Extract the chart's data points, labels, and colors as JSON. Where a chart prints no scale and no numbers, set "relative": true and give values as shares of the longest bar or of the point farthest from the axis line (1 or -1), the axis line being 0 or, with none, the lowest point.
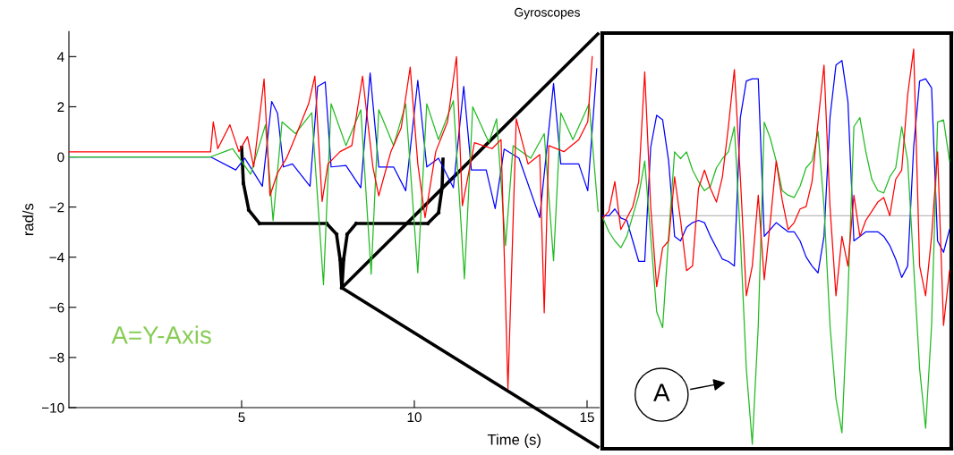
{
  "chart_data": [
    {
      "type": "line",
      "title": "Gyroscopes",
      "xlabel": "Time (s)",
      "ylabel": "rad/s",
      "xlim": [
        0,
        15.35
      ],
      "ylim": [
        -10,
        5
      ],
      "xticks": [
        5,
        10,
        15
      ],
      "yticks": [
        {
          "value": -10,
          "label": "−10"
        },
        {
          "value": -8,
          "label": "−8"
        },
        {
          "value": -6,
          "label": "−6"
        },
        {
          "value": -4,
          "label": "−4"
        },
        {
          "value": -2,
          "label": "−2"
        },
        0,
        2,
        4
      ],
      "grid": false,
      "legend": false,
      "marker": "none",
      "line_style": "solid",
      "annotations": [
        "A=Y-Axis"
      ],
      "series": [
        {
          "color": "#0000ff",
          "x": [
            0,
            4.1,
            4.83,
            5.09,
            5.6,
            5.87,
            6.04,
            6.21,
            6.47,
            6.98,
            7.2,
            7.42,
            7.59,
            8.02,
            8.45,
            8.72,
            8.97,
            9.4,
            9.75,
            10.1,
            10.36,
            10.7,
            11.13,
            11.43,
            11.65,
            12.08,
            12.34,
            12.6,
            13.03,
            13.63,
            14.03,
            14.24,
            14.76,
            15.02,
            15.28
          ],
          "values": [
            0,
            0,
            -0.52,
            -0.05,
            -1.17,
            2.21,
            1.74,
            -0.4,
            -0.28,
            -1.17,
            2.81,
            2.99,
            -0.4,
            -0.34,
            -1.23,
            3.35,
            -0.4,
            -0.4,
            -1.35,
            3.05,
            -0.4,
            -0.05,
            -1.23,
            2.81,
            -0.52,
            -0.52,
            -2.06,
            0.31,
            -0.05,
            -2.42,
            2.93,
            -0.28,
            -0.28,
            -1.35,
            3.52
          ]
        },
        {
          "color": "#22bb22",
          "x": [
            0,
            4.1,
            4.74,
            5.26,
            5.69,
            5.91,
            6.17,
            6.56,
            7.03,
            7.37,
            7.59,
            8.02,
            8.45,
            8.75,
            8.97,
            9.4,
            9.75,
            10.1,
            10.36,
            10.7,
            11.13,
            11.45,
            11.69,
            12.16,
            12.38,
            12.64,
            12.86,
            13.37,
            13.76,
            14.03,
            14.24,
            14.59,
            15.06,
            15.32
          ],
          "values": [
            0,
            0,
            0.33,
            -0.69,
            1.28,
            -2.54,
            1.4,
            0.93,
            1.76,
            -5.1,
            2.12,
            0.45,
            1.88,
            -4.68,
            1.88,
            0.45,
            2.12,
            -4.62,
            2.12,
            0.69,
            2.24,
            -4.86,
            2.0,
            0.57,
            1.52,
            -3.54,
            0.45,
            -0.05,
            0.93,
            -4.14,
            1.76,
            0.69,
            2.12,
            -2.18
          ]
        },
        {
          "color": "#ff0000",
          "x": [
            0,
            4.1,
            4.18,
            4.31,
            4.66,
            4.92,
            5.17,
            5.35,
            5.65,
            5.82,
            6.04,
            6.3,
            6.56,
            6.94,
            7.12,
            7.33,
            7.5,
            7.85,
            8.19,
            8.5,
            8.8,
            8.97,
            9.32,
            9.62,
            9.88,
            10.1,
            10.31,
            10.62,
            10.96,
            11.22,
            11.39,
            11.74,
            12.25,
            12.51,
            12.71,
            12.95,
            13.29,
            13.63,
            13.76,
            13.89,
            14.33,
            14.76,
            15.02,
            15.15
          ],
          "values": [
            0.2,
            0.2,
            1.4,
            0.33,
            1.28,
            0.21,
            0.81,
            -0.4,
            3.11,
            -1.55,
            -0.64,
            -0.05,
            0.81,
            2.12,
            3.22,
            -1.78,
            -0.28,
            0.21,
            0.45,
            3.22,
            -0.4,
            -1.55,
            0.21,
            1.16,
            3.58,
            -0.28,
            -2.42,
            0.21,
            1.4,
            4.0,
            -1.95,
            0.57,
            0.33,
            0.69,
            -9.25,
            1.52,
            -0.28,
            0.09,
            -6.22,
            0.45,
            0.21,
            0.69,
            1.4,
            4.0
          ]
        }
      ]
    },
    {
      "type": "line",
      "relative": true,
      "grid": false,
      "legend": false,
      "marker": "none",
      "line_style": "solid",
      "categories": [
        null,
        null,
        null,
        null,
        null,
        null,
        null,
        null,
        null,
        null,
        null,
        null,
        null,
        null,
        null,
        null,
        null,
        null,
        null,
        null,
        null,
        null,
        null,
        null,
        null,
        null,
        null,
        null,
        null,
        null,
        null,
        null,
        null,
        null,
        null,
        null,
        null,
        null,
        null,
        null,
        null,
        null,
        null,
        null,
        null,
        null,
        null,
        null,
        null,
        null,
        null,
        null,
        null,
        null,
        null,
        null,
        null,
        null,
        null
      ],
      "annotations": [
        "A"
      ],
      "series": [
        {
          "color": "#0000ff",
          "values": [
            0.0,
            0.0,
            0.03,
            -0.01,
            -0.02,
            -0.11,
            -0.2,
            -0.2,
            0.3,
            0.44,
            0.42,
            0.24,
            -0.09,
            -0.11,
            -0.05,
            -0.03,
            -0.02,
            -0.03,
            -0.09,
            -0.14,
            -0.19,
            -0.2,
            -0.22,
            0.43,
            0.59,
            0.6,
            0.6,
            -0.09,
            -0.06,
            -0.03,
            -0.05,
            -0.07,
            -0.07,
            -0.11,
            -0.18,
            -0.22,
            -0.25,
            -0.09,
            0.43,
            0.66,
            0.68,
            0.5,
            -0.11,
            -0.09,
            -0.07,
            -0.07,
            -0.07,
            -0.09,
            -0.13,
            -0.19,
            -0.27,
            -0.22,
            0.3,
            0.59,
            0.6,
            0.56,
            -0.11,
            -0.16,
            -0.06
          ]
        },
        {
          "color": "#22bb22",
          "values": [
            -0.01,
            -0.07,
            -0.11,
            -0.14,
            -0.09,
            0.0,
            0.09,
            0.24,
            -0.09,
            -0.42,
            -0.49,
            -0.09,
            0.28,
            0.25,
            0.28,
            0.2,
            0.15,
            0.11,
            0.13,
            0.21,
            0.25,
            0.28,
            0.39,
            -0.09,
            -0.67,
            -1,
            -0.48,
            0.41,
            0.34,
            0.24,
            0.11,
            0.09,
            0.08,
            0.13,
            0.21,
            0.24,
            0.37,
            0.04,
            -0.48,
            -0.8,
            -0.95,
            -0.35,
            0.39,
            0.43,
            0.28,
            0.16,
            0.11,
            0.1,
            0.17,
            0.21,
            0.39,
            0.24,
            -0.22,
            -0.67,
            -0.93,
            -0.48,
            0.41,
            0.42,
            0.24
          ]
        },
        {
          "color": "#ff0000",
          "values": [
            -0.01,
            0.02,
            0.15,
            -0.06,
            -0.01,
            0.04,
            0.15,
            0.63,
            0.04,
            -0.31,
            -0.14,
            -0.11,
            0.17,
            -0.02,
            -0.24,
            -0.22,
            0.12,
            0.2,
            0.12,
            0.06,
            0.17,
            0.39,
            0.64,
            0.17,
            -0.35,
            -0.22,
            0.09,
            -0.28,
            -0.03,
            0.24,
            0.07,
            -0.06,
            -0.03,
            0.03,
            0.04,
            0.15,
            0.41,
            0.66,
            0.04,
            -0.35,
            -0.09,
            -0.22,
            0.09,
            -0.09,
            -0.02,
            0.02,
            0.06,
            0.08,
            0.0,
            0.16,
            0.2,
            0.53,
            0.73,
            -0.22,
            -0.35,
            -0.09,
            0.28,
            -0.48,
            -0.24
          ]
        }
      ]
    }
  ]
}
